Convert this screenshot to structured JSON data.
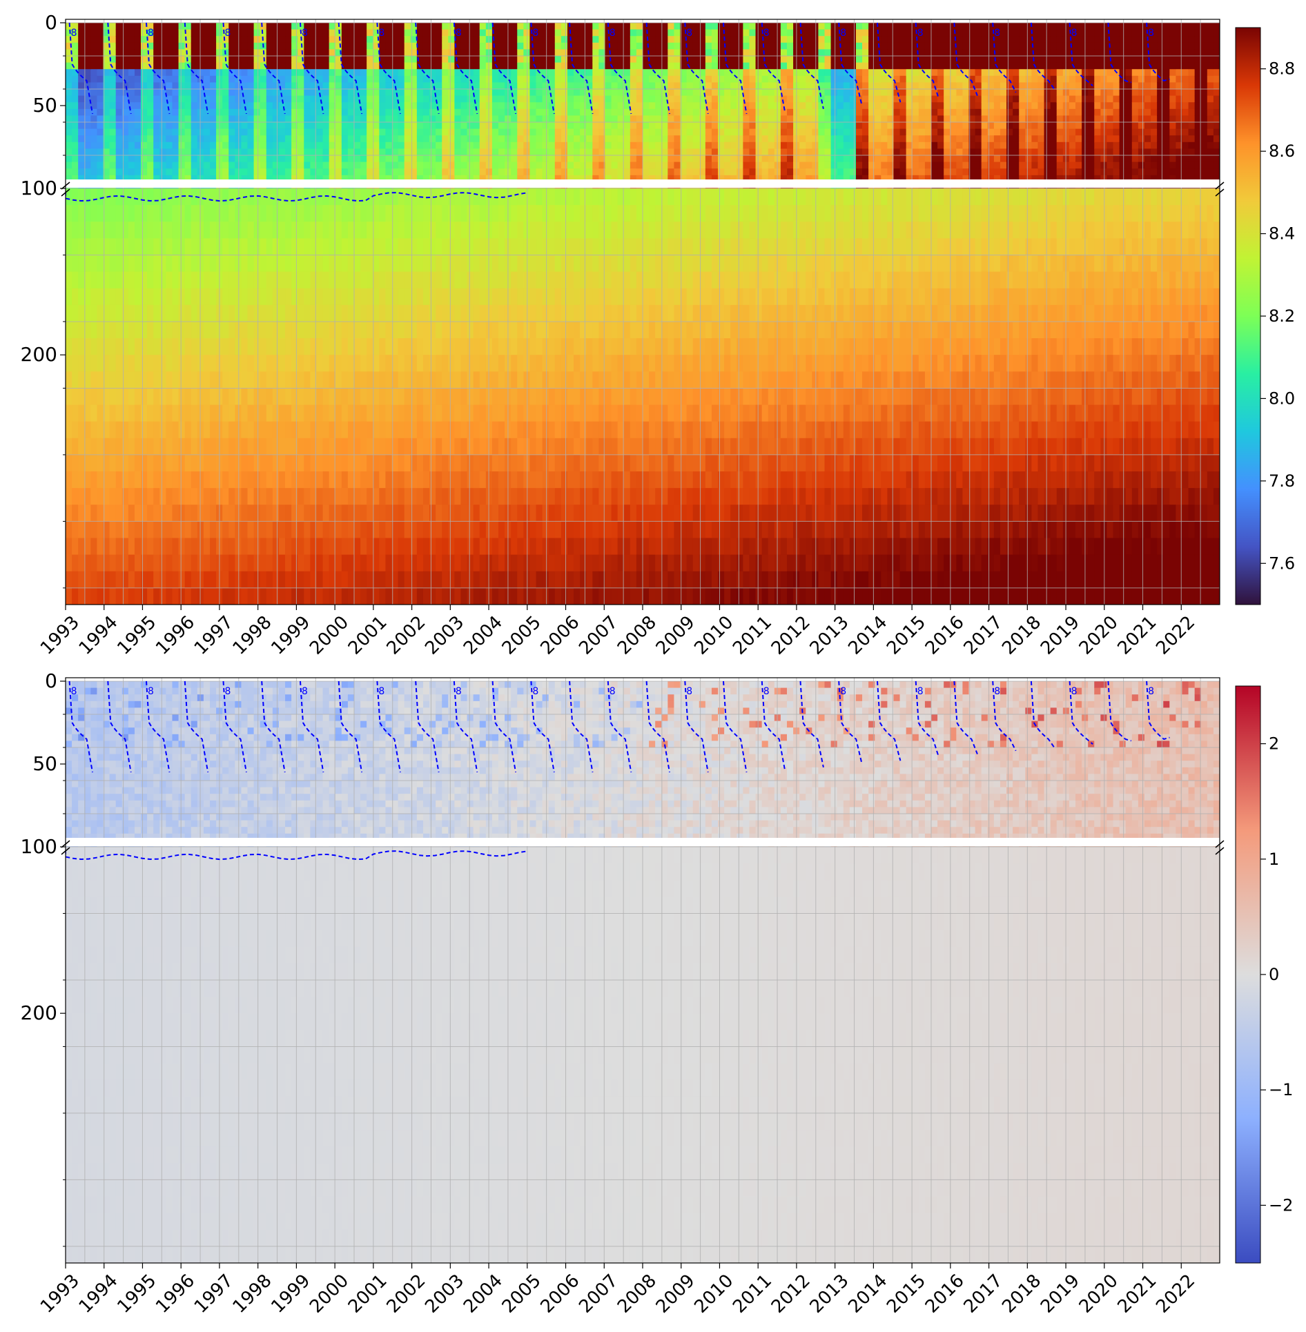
{
  "chart_data": [
    {
      "type": "heatmap",
      "title": "",
      "xlabel": "",
      "ylabel": "",
      "x_ticks": [
        "1993",
        "1994",
        "1995",
        "1996",
        "1997",
        "1998",
        "1999",
        "2000",
        "2001",
        "2002",
        "2003",
        "2004",
        "2005",
        "2006",
        "2007",
        "2008",
        "2009",
        "2010",
        "2011",
        "2012",
        "2013",
        "2014",
        "2015",
        "2016",
        "2017",
        "2018",
        "2019",
        "2020",
        "2021",
        "2022"
      ],
      "xlim": [
        1993,
        2023
      ],
      "y_ticks": [
        "0",
        "50",
        "100",
        "200"
      ],
      "y_axis": "inverted",
      "y_break": {
        "upper_segment": [
          0,
          100
        ],
        "lower_segment": [
          100,
          350
        ]
      },
      "colorbar": {
        "colormap": "turbo",
        "range": [
          7.5,
          8.9
        ],
        "ticks": [
          "7.6",
          "7.8",
          "8.0",
          "8.2",
          "8.4",
          "8.6",
          "8.8"
        ]
      },
      "contour": {
        "style": "dashed",
        "color": "#0000ff",
        "label": "8"
      },
      "grid": true
    },
    {
      "type": "heatmap",
      "title": "",
      "xlabel": "",
      "ylabel": "",
      "x_ticks": [
        "1993",
        "1994",
        "1995",
        "1996",
        "1997",
        "1998",
        "1999",
        "2000",
        "2001",
        "2002",
        "2003",
        "2004",
        "2005",
        "2006",
        "2007",
        "2008",
        "2009",
        "2010",
        "2011",
        "2012",
        "2013",
        "2014",
        "2015",
        "2016",
        "2017",
        "2018",
        "2019",
        "2020",
        "2021",
        "2022"
      ],
      "xlim": [
        1993,
        2023
      ],
      "y_ticks": [
        "0",
        "50",
        "100",
        "200"
      ],
      "y_axis": "inverted",
      "y_break": {
        "upper_segment": [
          0,
          100
        ],
        "lower_segment": [
          100,
          350
        ]
      },
      "colorbar": {
        "colormap": "coolwarm",
        "range": [
          -2.5,
          2.5
        ],
        "ticks": [
          "−2",
          "−1",
          "0",
          "1",
          "2"
        ]
      },
      "contour": {
        "style": "dashed",
        "color": "#0000ff",
        "label": "8"
      },
      "grid": true
    }
  ]
}
